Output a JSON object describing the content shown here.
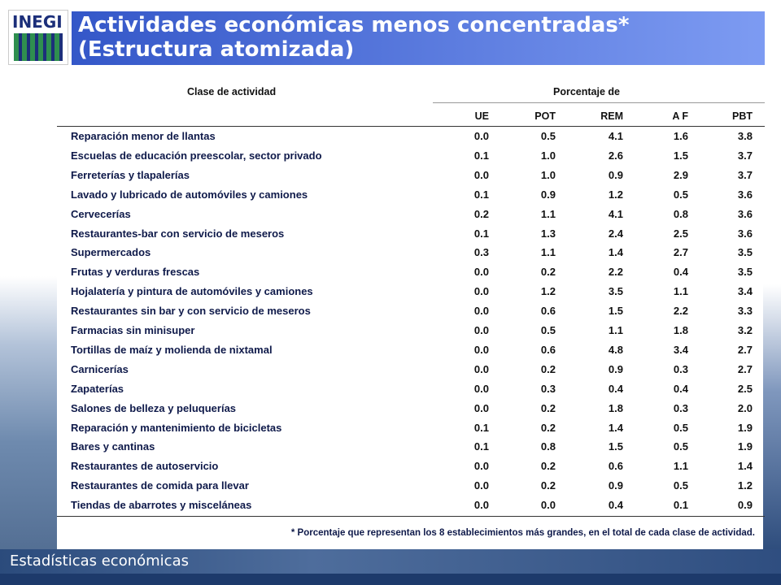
{
  "logo": "INEGI",
  "header": {
    "title": [
      "Actividades económicas menos concentradas*",
      "(Estructura atomizada)"
    ]
  },
  "table": {
    "group_headers": [
      "Clase de actividad",
      "Porcentaje de"
    ],
    "columns": [
      "UE",
      "POT",
      "REM",
      "A F",
      "PBT"
    ],
    "rows": [
      [
        "Reparación menor de llantas",
        "0.0",
        "0.5",
        "4.1",
        "1.6",
        "3.8"
      ],
      [
        "Escuelas de educación preescolar, sector privado",
        "0.1",
        "1.0",
        "2.6",
        "1.5",
        "3.7"
      ],
      [
        "Ferreterías y tlapalerías",
        "0.0",
        "1.0",
        "0.9",
        "2.9",
        "3.7"
      ],
      [
        "Lavado y lubricado de automóviles y camiones",
        "0.1",
        "0.9",
        "1.2",
        "0.5",
        "3.6"
      ],
      [
        "Cervecerías",
        "0.2",
        "1.1",
        "4.1",
        "0.8",
        "3.6"
      ],
      [
        "Restaurantes-bar con servicio de meseros",
        "0.1",
        "1.3",
        "2.4",
        "2.5",
        "3.6"
      ],
      [
        "Supermercados",
        "0.3",
        "1.1",
        "1.4",
        "2.7",
        "3.5"
      ],
      [
        "Frutas y verduras frescas",
        "0.0",
        "0.2",
        "2.2",
        "0.4",
        "3.5"
      ],
      [
        "Hojalatería y pintura de automóviles y camiones",
        "0.0",
        "1.2",
        "3.5",
        "1.1",
        "3.4"
      ],
      [
        "Restaurantes sin bar y con servicio de meseros",
        "0.0",
        "0.6",
        "1.5",
        "2.2",
        "3.3"
      ],
      [
        "Farmacias sin minisuper",
        "0.0",
        "0.5",
        "1.1",
        "1.8",
        "3.2"
      ],
      [
        "Tortillas de maíz y molienda de nixtamal",
        "0.0",
        "0.6",
        "4.8",
        "3.4",
        "2.7"
      ],
      [
        "Carnicerías",
        "0.0",
        "0.2",
        "0.9",
        "0.3",
        "2.7"
      ],
      [
        "Zapaterías",
        "0.0",
        "0.3",
        "0.4",
        "0.4",
        "2.5"
      ],
      [
        "Salones de belleza y peluquerías",
        "0.0",
        "0.2",
        "1.8",
        "0.3",
        "2.0"
      ],
      [
        "Reparación y mantenimiento de bicicletas",
        "0.1",
        "0.2",
        "1.4",
        "0.5",
        "1.9"
      ],
      [
        "Bares y cantinas",
        "0.1",
        "0.8",
        "1.5",
        "0.5",
        "1.9"
      ],
      [
        "Restaurantes de autoservicio",
        "0.0",
        "0.2",
        "0.6",
        "1.1",
        "1.4"
      ],
      [
        "Restaurantes de comida para llevar",
        "0.0",
        "0.2",
        "0.9",
        "0.5",
        "1.2"
      ],
      [
        "Tiendas de abarrotes y misceláneas",
        "0.0",
        "0.0",
        "0.4",
        "0.1",
        "0.9"
      ]
    ]
  },
  "footnote": "* Porcentaje que representan los 8 establecimientos más grandes, en el total de cada clase de actividad.",
  "footer": "Estadísticas económicas"
}
